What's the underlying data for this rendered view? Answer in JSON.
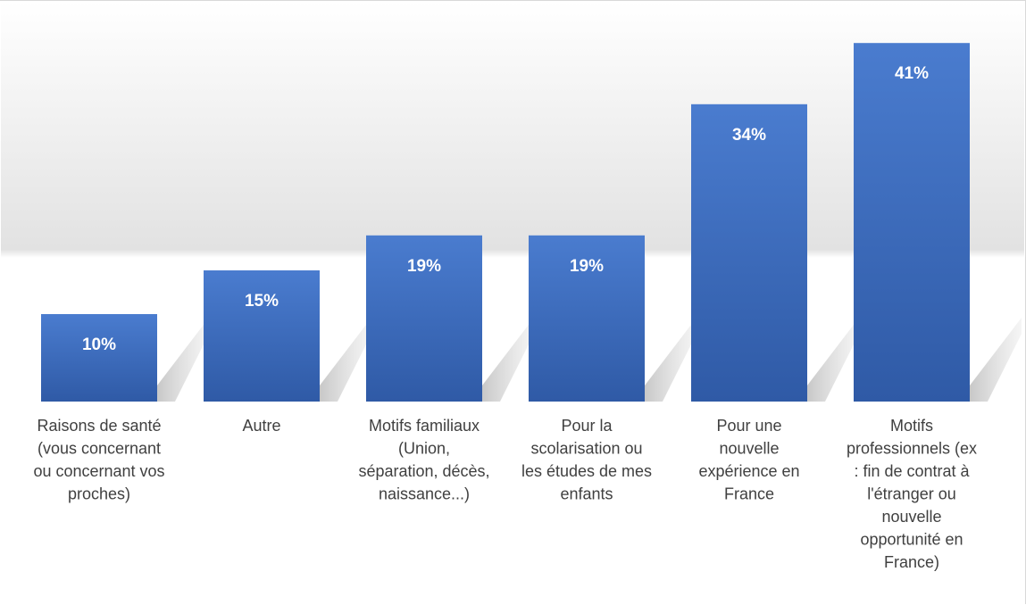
{
  "chart_data": {
    "type": "bar",
    "title": "",
    "xlabel": "",
    "ylabel": "",
    "ylim": [
      0,
      45
    ],
    "grid": false,
    "legend": "none",
    "categories": [
      "Raisons de santé (vous concernant ou concernant vos proches)",
      "Autre",
      "Motifs familiaux (Union, séparation, décès, naissance...)",
      "Pour la scolarisation ou les études de mes enfants",
      "Pour une nouvelle expérience en France",
      "Motifs professionnels (ex : fin de contrat à l'étranger ou nouvelle opportunité en France)"
    ],
    "category_lines": [
      [
        "Raisons de santé",
        "(vous concernant",
        "ou concernant vos",
        "proches)"
      ],
      [
        "Autre"
      ],
      [
        "Motifs familiaux",
        "(Union,",
        "séparation, décès,",
        "naissance...)"
      ],
      [
        "Pour la",
        "scolarisation ou",
        "les études de mes",
        "enfants"
      ],
      [
        "Pour une",
        "nouvelle",
        "expérience en",
        "France"
      ],
      [
        "Motifs",
        "professionnels (ex",
        ": fin de contrat à",
        "l'étranger ou",
        "nouvelle",
        "opportunité en",
        "France)"
      ]
    ],
    "values": [
      10,
      15,
      19,
      19,
      34,
      41
    ],
    "data_labels": [
      "10%",
      "15%",
      "19%",
      "19%",
      "34%",
      "41%"
    ],
    "colors": {
      "bar_top": "#4A7CCF",
      "bar_bottom": "#2F5AA6",
      "label": "#404040",
      "value_label": "#ffffff"
    }
  }
}
